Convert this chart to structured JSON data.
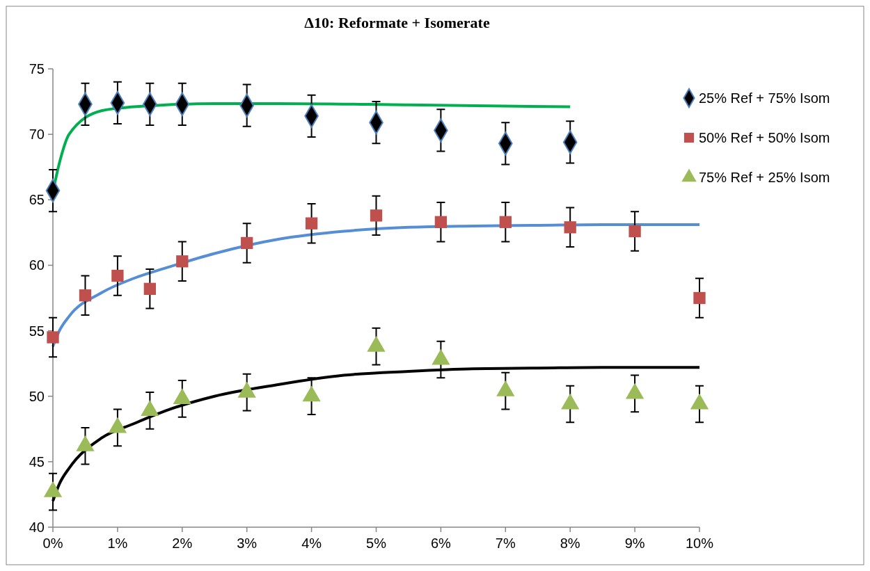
{
  "chart_data": {
    "type": "scatter",
    "title": "Δ10: Reformate + Isomerate",
    "xlim": [
      0,
      10
    ],
    "xticks": [
      {
        "value": 0,
        "label": "0%"
      },
      {
        "value": 1,
        "label": "1%"
      },
      {
        "value": 2,
        "label": "2%"
      },
      {
        "value": 3,
        "label": "3%"
      },
      {
        "value": 4,
        "label": "4%"
      },
      {
        "value": 5,
        "label": "5%"
      },
      {
        "value": 6,
        "label": "6%"
      },
      {
        "value": 7,
        "label": "7%"
      },
      {
        "value": 8,
        "label": "8%"
      },
      {
        "value": 9,
        "label": "9%"
      },
      {
        "value": 10,
        "label": "10%"
      }
    ],
    "ylim": [
      40,
      75
    ],
    "yticks": [
      40,
      45,
      50,
      55,
      60,
      65,
      70,
      75
    ],
    "grid": false,
    "legend": "right",
    "series": [
      {
        "name": "25% Ref + 75% Isom",
        "marker": "diamond",
        "color": "#000000",
        "x": [
          0,
          0.5,
          1,
          1.5,
          2,
          3,
          4,
          5,
          6,
          7,
          8
        ],
        "values": [
          65.7,
          72.3,
          72.4,
          72.3,
          72.3,
          72.2,
          71.4,
          70.9,
          70.3,
          69.3,
          69.4
        ],
        "errors": [
          1.6,
          1.6,
          1.6,
          1.6,
          1.6,
          1.6,
          1.6,
          1.6,
          1.6,
          1.6,
          1.6
        ]
      },
      {
        "name": "50% Ref + 50% Isom",
        "marker": "square",
        "color": "#c0504d",
        "x": [
          0,
          0.5,
          1,
          1.5,
          2,
          3,
          4,
          5,
          6,
          7,
          8,
          9,
          10
        ],
        "values": [
          54.5,
          57.7,
          59.2,
          58.2,
          60.3,
          61.7,
          63.2,
          63.8,
          63.3,
          63.3,
          62.9,
          62.6,
          57.5
        ],
        "errors": [
          1.5,
          1.5,
          1.5,
          1.5,
          1.5,
          1.5,
          1.5,
          1.5,
          1.5,
          1.5,
          1.5,
          1.5,
          1.5
        ]
      },
      {
        "name": "75% Ref + 25% Isom",
        "marker": "triangle",
        "color": "#9bbb59",
        "x": [
          0,
          0.5,
          1,
          1.5,
          2,
          3,
          4,
          5,
          6,
          7,
          8,
          9,
          10
        ],
        "values": [
          42.7,
          46.2,
          47.6,
          48.9,
          49.8,
          50.3,
          50.0,
          53.8,
          52.8,
          50.4,
          49.4,
          50.2,
          49.4
        ],
        "errors": [
          1.4,
          1.4,
          1.4,
          1.4,
          1.4,
          1.4,
          1.4,
          1.4,
          1.4,
          1.4,
          1.4,
          1.4,
          1.4
        ]
      },
      {
        "type": "line",
        "marker": "none",
        "color": "#00b050",
        "x": [
          0,
          0.1,
          0.25,
          0.75,
          1.25,
          1.75,
          2.5,
          3.5,
          5.5,
          8
        ],
        "values": [
          65.6,
          67.8,
          70.0,
          71.8,
          72.1,
          72.25,
          72.35,
          72.35,
          72.25,
          72.1
        ]
      },
      {
        "type": "line",
        "marker": "none",
        "color": "#558ed5",
        "x": [
          0,
          0.1,
          0.25,
          0.75,
          1.25,
          1.75,
          2.5,
          3.5,
          4.5,
          5.5,
          6.5,
          7.5,
          8.5,
          10
        ],
        "values": [
          53.8,
          55.0,
          56.1,
          57.9,
          59.0,
          59.8,
          60.9,
          62.0,
          62.6,
          62.9,
          63.0,
          63.05,
          63.1,
          63.1
        ]
      },
      {
        "type": "line",
        "marker": "none",
        "color": "#000000",
        "x": [
          0,
          0.1,
          0.25,
          0.75,
          1.25,
          1.75,
          2.5,
          3.5,
          4.5,
          5.5,
          6.5,
          7.5,
          8.5,
          10
        ],
        "values": [
          42.0,
          43.3,
          44.5,
          46.8,
          47.9,
          48.9,
          50.0,
          50.9,
          51.6,
          51.9,
          52.1,
          52.15,
          52.2,
          52.2
        ]
      }
    ]
  }
}
